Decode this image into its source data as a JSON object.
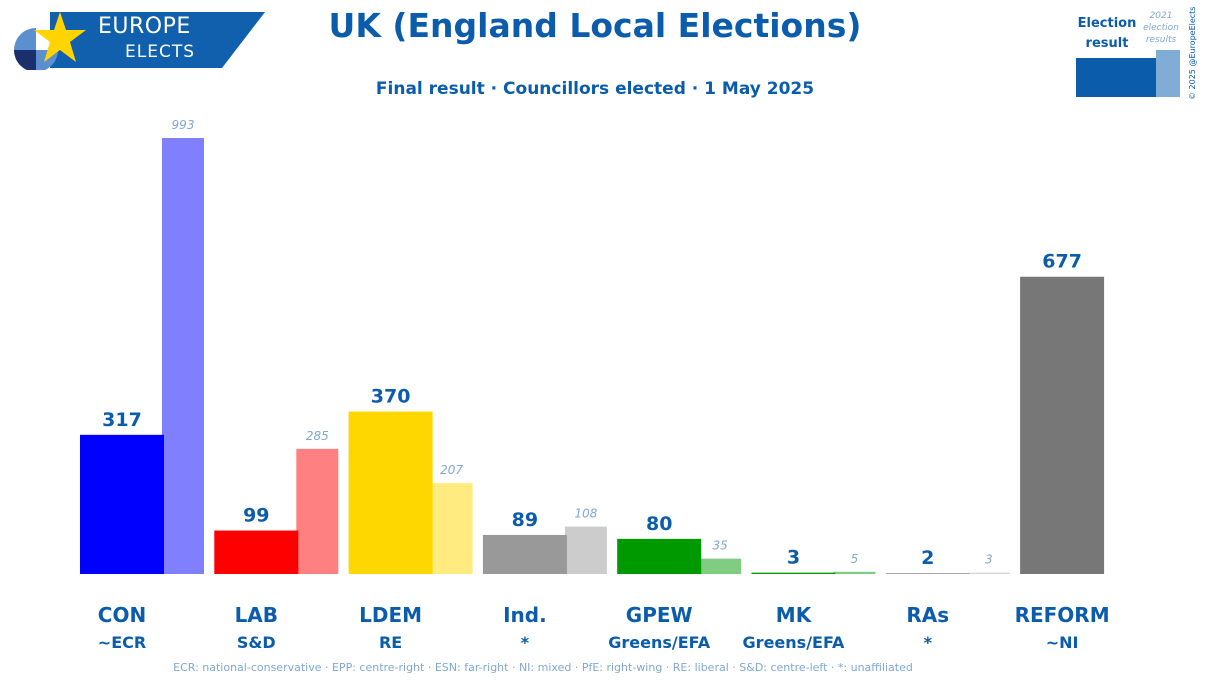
{
  "header": {
    "logo_line1": "EUROPE",
    "logo_line2": "ELECTS",
    "title": "UK (England Local Elections)",
    "subtitle": "Final result · Councillors elected · 1 May 2025"
  },
  "legend": {
    "current_label": "Election result",
    "previous_label": "2021 election results"
  },
  "copyright": "© 2025 @EuropeElects",
  "footer": "ECR: national-conservative · EPP: centre-right · ESN: far-right · NI: mixed · PfE: right-wing · RE: liberal · S&D: centre-left · *: unaffiliated",
  "chart_data": {
    "type": "bar",
    "title": "UK (England Local Elections)",
    "categories": [
      "CON",
      "LAB",
      "LDEM",
      "Ind.",
      "GPEW",
      "MK",
      "RAs",
      "REFORM"
    ],
    "groups": [
      "~ECR",
      "S&D",
      "RE",
      "*",
      "Greens/EFA",
      "Greens/EFA",
      "*",
      "~NI"
    ],
    "series": [
      {
        "name": "Election result",
        "values": [
          317,
          99,
          370,
          89,
          80,
          3,
          2,
          677
        ]
      },
      {
        "name": "2021 election results",
        "values": [
          993,
          285,
          207,
          108,
          35,
          5,
          3,
          null
        ]
      }
    ],
    "colors": [
      "#0000ff",
      "#ff0000",
      "#ffd700",
      "#999999",
      "#009900",
      "#009900",
      "#aaaaaa",
      "#777777"
    ],
    "prev_colors": [
      "#8080ff",
      "#ff8080",
      "#ffeb80",
      "#cccccc",
      "#80cc80",
      "#80cc80",
      "#d5d5d5",
      null
    ],
    "value_color": "#0b5cab",
    "prev_value_color": "#7fa8d4",
    "ylim": [
      0,
      993
    ]
  }
}
